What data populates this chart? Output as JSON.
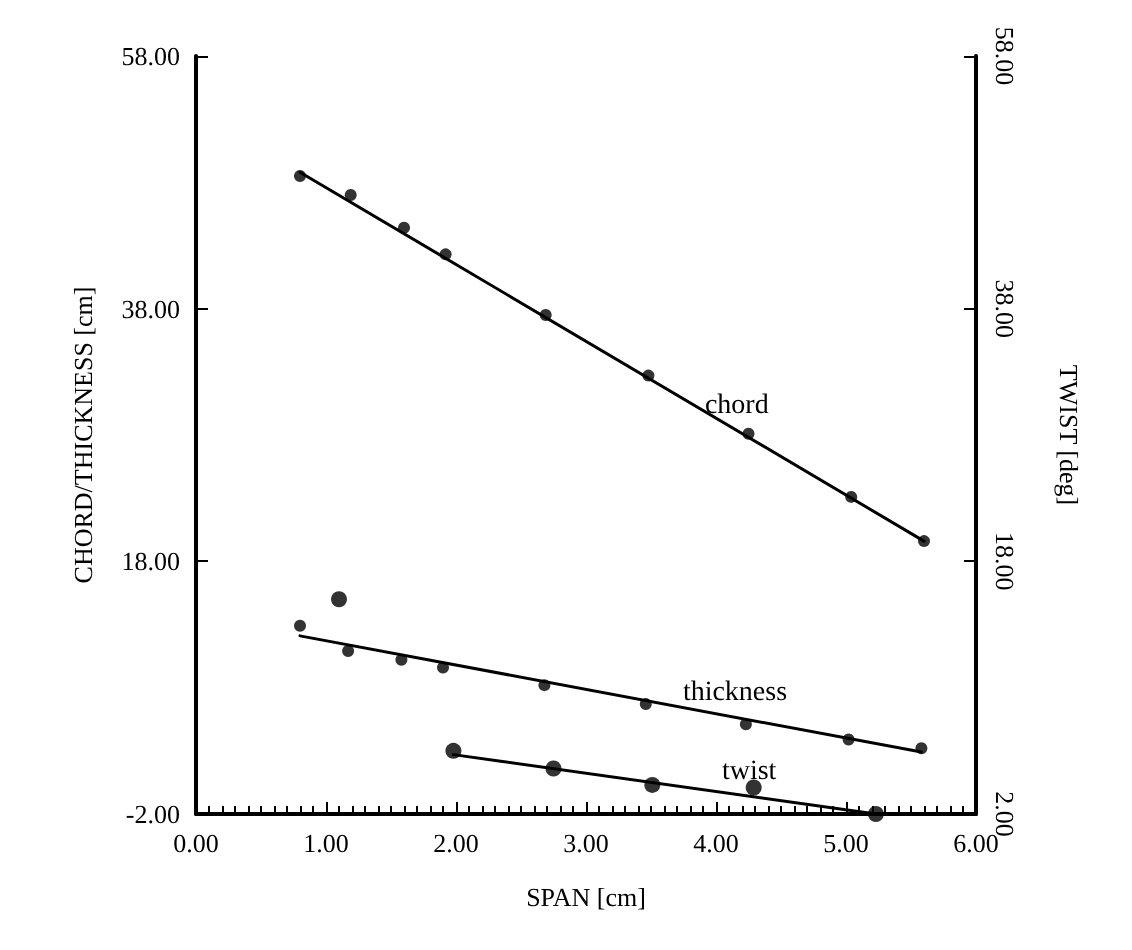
{
  "chart_data": {
    "type": "scatter",
    "xlabel": "SPAN [cm]",
    "ylabel": "CHORD/THICKNESS [cm]",
    "y2label": "TWIST [deg]",
    "xlim": [
      0,
      6
    ],
    "xticks": [
      {
        "value": 0,
        "label": "0.00"
      },
      {
        "value": 1,
        "label": "1.00"
      },
      {
        "value": 2,
        "label": "2.00"
      },
      {
        "value": 3,
        "label": "3.00"
      },
      {
        "value": 4,
        "label": "4.00"
      },
      {
        "value": 5,
        "label": "5.00"
      },
      {
        "value": 6,
        "label": "6.00"
      }
    ],
    "ylim": [
      -2,
      58
    ],
    "yticks": [
      {
        "value": -2,
        "label": "-2.00"
      },
      {
        "value": 18,
        "label": "18.00"
      },
      {
        "value": 38,
        "label": "38.00"
      },
      {
        "value": 58,
        "label": "58.00"
      }
    ],
    "y2lim": [
      -2,
      58
    ],
    "y2ticks": [
      {
        "value": -2,
        "label": "2.00"
      },
      {
        "value": 18,
        "label": "18.00"
      },
      {
        "value": 38,
        "label": "38.00"
      },
      {
        "value": 58,
        "label": "58.00"
      }
    ],
    "series": [
      {
        "marker": "circle",
        "color": "#000000",
        "x": [
          0.8,
          1.19,
          1.6,
          1.92,
          2.69,
          3.48,
          4.25,
          5.04,
          5.6
        ],
        "values": [
          48.5,
          47.0,
          44.4,
          42.3,
          37.5,
          32.7,
          28.1,
          23.1,
          19.6
        ]
      },
      {
        "type": "line",
        "name": "chord",
        "marker": "none",
        "line_style": "solid",
        "color": "#000000",
        "x": [
          0.8,
          5.6
        ],
        "values": [
          48.8,
          19.6
        ]
      },
      {
        "marker": "circle",
        "color": "#000000",
        "x": [
          0.8,
          1.17,
          1.58,
          1.9,
          2.68,
          3.46,
          4.23,
          5.02,
          5.58
        ],
        "values": [
          12.9,
          10.9,
          10.2,
          9.6,
          8.2,
          6.7,
          5.1,
          3.9,
          3.2
        ]
      },
      {
        "type": "line",
        "name": "thickness",
        "marker": "none",
        "line_style": "solid",
        "color": "#000000",
        "x": [
          0.8,
          5.58
        ],
        "values": [
          12.1,
          2.9
        ]
      },
      {
        "marker": "circle",
        "axis": "y2",
        "color": "#000000",
        "x": [
          1.1,
          1.98,
          2.75,
          3.51,
          4.29,
          5.23
        ],
        "values": [
          15.0,
          3.0,
          1.6,
          0.3,
          0.1,
          -2.0
        ]
      },
      {
        "type": "line",
        "name": "twist",
        "marker": "none",
        "line_style": "solid",
        "axis": "y2",
        "color": "#000000",
        "x": [
          1.98,
          5.23
        ],
        "values": [
          2.7,
          -2.0
        ]
      }
    ],
    "grid": false,
    "legend": false
  }
}
